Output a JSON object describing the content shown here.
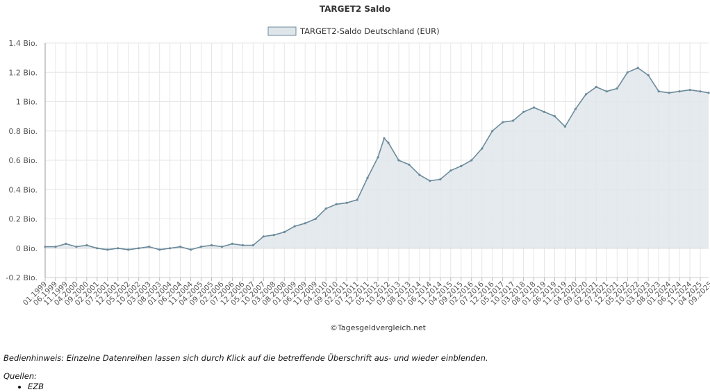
{
  "chart_data": {
    "type": "area",
    "title": "TARGET2 Saldo",
    "credit": "©Tagesgeldvergleich.net",
    "legend": {
      "placement": "top-center"
    },
    "grid": true,
    "colors": {
      "line": "#6b8a9c",
      "fill": "#dfe6ea",
      "grid": "#e6e6e6",
      "axis": "#999999"
    },
    "ylim": [
      -0.2,
      1.4
    ],
    "y_ticks": [
      {
        "value": -0.2,
        "label": "-0.2 Bio."
      },
      {
        "value": 0,
        "label": "0 Bio."
      },
      {
        "value": 0.2,
        "label": "0.2 Bio."
      },
      {
        "value": 0.4,
        "label": "0.4 Bio."
      },
      {
        "value": 0.6,
        "label": "0.6 Bio."
      },
      {
        "value": 0.8,
        "label": "0.8 Bio."
      },
      {
        "value": 1.0,
        "label": "1 Bio."
      },
      {
        "value": 1.2,
        "label": "1.2 Bio."
      },
      {
        "value": 1.4,
        "label": "1.4 Bio."
      }
    ],
    "x_tick_labels": [
      "01.1999",
      "06.1999",
      "11.1999",
      "04.2000",
      "09.2000",
      "02.2001",
      "07.2001",
      "12.2001",
      "05.2002",
      "10.2002",
      "03.2003",
      "08.2003",
      "01.2004",
      "06.2004",
      "11.2004",
      "04.2005",
      "09.2005",
      "02.2006",
      "07.2006",
      "12.2006",
      "05.2007",
      "10.2007",
      "03.2008",
      "08.2008",
      "01.2009",
      "06.2009",
      "11.2009",
      "04.2010",
      "09.2010",
      "02.2011",
      "07.2011",
      "12.2011",
      "05.2012",
      "10.2012",
      "03.2013",
      "08.2013",
      "01.2014",
      "06.2014",
      "11.2014",
      "04.2015",
      "09.2015",
      "02.2016",
      "07.2016",
      "12.2016",
      "05.2017",
      "10.2017",
      "03.2018",
      "08.2018",
      "01.2019",
      "06.2019",
      "11.2019",
      "04.2020",
      "09.2020",
      "02.2021",
      "07.2021",
      "12.2021",
      "05.2022",
      "10.2022",
      "03.2023",
      "08.2023",
      "01.2024",
      "06.2024",
      "11.2024",
      "04.2025",
      "09.2025"
    ],
    "series": [
      {
        "name": "TARGET2-Saldo Deutschland (EUR)",
        "x": [
          "01.1999",
          "06.1999",
          "11.1999",
          "04.2000",
          "09.2000",
          "02.2001",
          "07.2001",
          "12.2001",
          "05.2002",
          "10.2002",
          "03.2003",
          "08.2003",
          "01.2004",
          "06.2004",
          "11.2004",
          "04.2005",
          "09.2005",
          "02.2006",
          "07.2006",
          "12.2006",
          "05.2007",
          "10.2007",
          "03.2008",
          "08.2008",
          "01.2009",
          "06.2009",
          "11.2009",
          "04.2010",
          "09.2010",
          "02.2011",
          "07.2011",
          "12.2011",
          "05.2012",
          "08.2012",
          "10.2012",
          "03.2013",
          "08.2013",
          "01.2014",
          "06.2014",
          "11.2014",
          "04.2015",
          "09.2015",
          "02.2016",
          "07.2016",
          "12.2016",
          "05.2017",
          "10.2017",
          "03.2018",
          "08.2018",
          "01.2019",
          "06.2019",
          "11.2019",
          "04.2020",
          "09.2020",
          "02.2021",
          "07.2021",
          "12.2021",
          "05.2022",
          "10.2022",
          "03.2023",
          "08.2023",
          "01.2024",
          "06.2024",
          "11.2024",
          "04.2025",
          "08.2025"
        ],
        "values": [
          0.01,
          0.01,
          0.03,
          0.01,
          0.02,
          0.0,
          -0.01,
          0.0,
          -0.01,
          0.0,
          0.01,
          -0.01,
          0.0,
          0.01,
          -0.01,
          0.01,
          0.02,
          0.01,
          0.03,
          0.02,
          0.02,
          0.08,
          0.09,
          0.11,
          0.15,
          0.17,
          0.2,
          0.27,
          0.3,
          0.31,
          0.33,
          0.48,
          0.62,
          0.75,
          0.72,
          0.6,
          0.57,
          0.5,
          0.46,
          0.47,
          0.53,
          0.56,
          0.6,
          0.68,
          0.8,
          0.86,
          0.87,
          0.93,
          0.96,
          0.93,
          0.9,
          0.83,
          0.95,
          1.05,
          1.1,
          1.07,
          1.09,
          1.2,
          1.23,
          1.18,
          1.07,
          1.06,
          1.07,
          1.08,
          1.07,
          1.06
        ]
      }
    ]
  },
  "notes": {
    "hint": "Bedienhinweis: Einzelne Datenreihen lassen sich durch Klick auf die betreffende Überschrift aus- und wieder einblenden.",
    "sources_title": "Quellen:",
    "sources": [
      "EZB"
    ]
  }
}
